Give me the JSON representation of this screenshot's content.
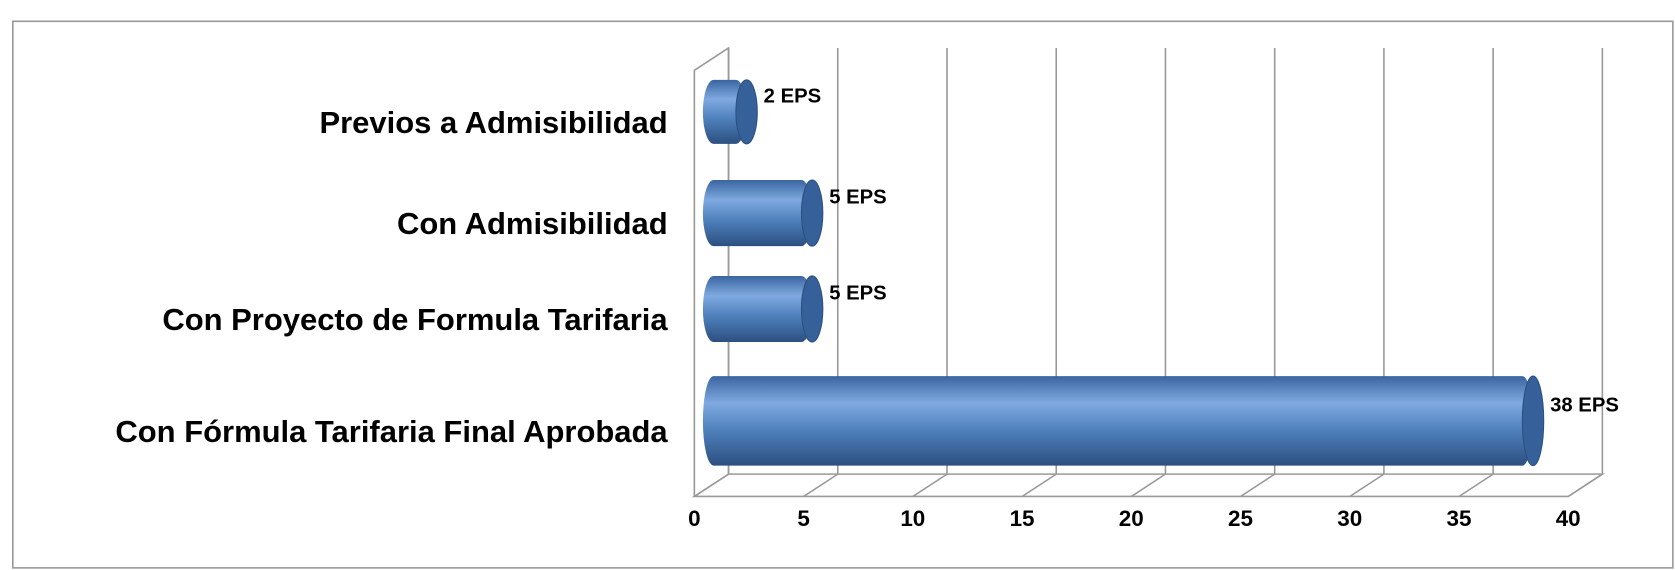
{
  "chart_data": {
    "type": "bar",
    "orientation": "horizontal",
    "categories": [
      "Previos a Admisibilidad",
      "Con Admisibilidad",
      "Con Proyecto de Formula Tarifaria",
      "Con Fórmula Tarifaria Final  Aprobada"
    ],
    "values": [
      2,
      5,
      5,
      38
    ],
    "value_labels": [
      "2 EPS",
      "5 EPS",
      "5 EPS",
      "38 EPS"
    ],
    "color": "#4f81bd",
    "xlim": [
      0,
      40
    ],
    "xticks": [
      0,
      5,
      10,
      15,
      20,
      25,
      30,
      35,
      40
    ],
    "grid": true
  }
}
